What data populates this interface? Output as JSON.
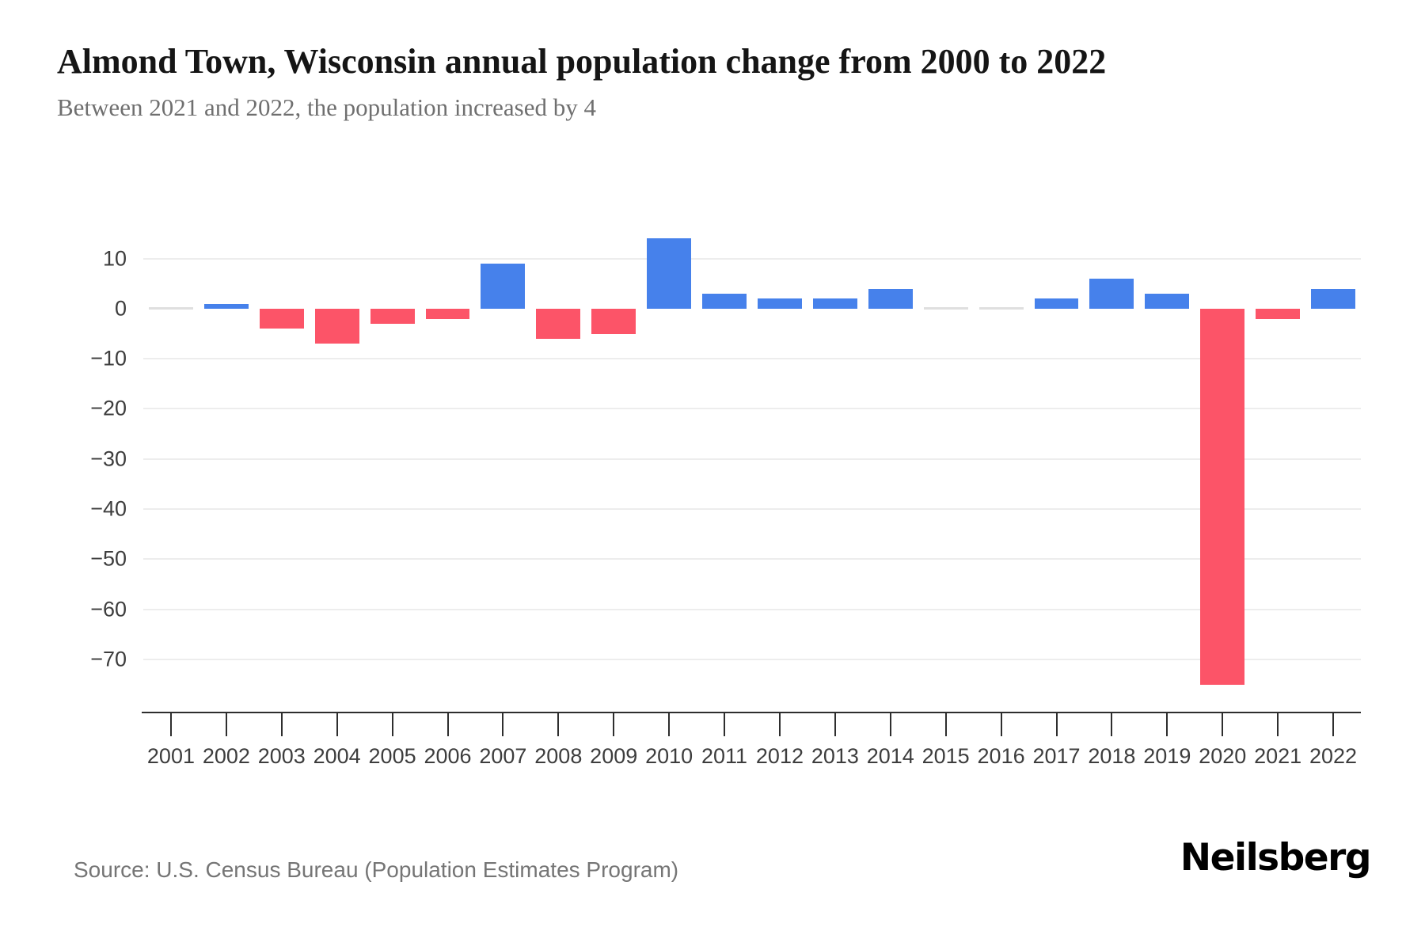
{
  "header": {
    "title": "Almond Town, Wisconsin annual population change from 2000 to 2022",
    "subtitle": "Between 2021 and 2022, the population increased by 4"
  },
  "chart_data": {
    "type": "bar",
    "title": "Almond Town, Wisconsin annual population change from 2000 to 2022",
    "subtitle": "Between 2021 and 2022, the population increased by 4",
    "categories": [
      "2001",
      "2002",
      "2003",
      "2004",
      "2005",
      "2006",
      "2007",
      "2008",
      "2009",
      "2010",
      "2011",
      "2012",
      "2013",
      "2014",
      "2015",
      "2016",
      "2017",
      "2018",
      "2019",
      "2020",
      "2021",
      "2022"
    ],
    "values": [
      0,
      1,
      -4,
      -7,
      -3,
      -2,
      9,
      -6,
      -5,
      14,
      3,
      2,
      2,
      4,
      0,
      0,
      2,
      6,
      3,
      -75,
      -2,
      4
    ],
    "xlabel": "",
    "ylabel": "",
    "ylim": [
      -80.6,
      22.1
    ],
    "yticks": [
      10,
      0,
      -10,
      -20,
      -30,
      -40,
      -50,
      -60,
      -70
    ],
    "grid": true,
    "legend_position": "none",
    "colors": {
      "positive_bar": "#4681EB",
      "negative_bar": "#FC5468",
      "zero_bar": "#DFDFDF",
      "gridline": "#EDEDED",
      "axis": "#2E2E2E",
      "tick_label": "#3D3D3D",
      "title": "#151515",
      "subtitle": "#6F6F6F"
    }
  },
  "footer": {
    "source": "Source: U.S. Census Bureau (Population Estimates Program)",
    "logo": "Neilsberg"
  }
}
